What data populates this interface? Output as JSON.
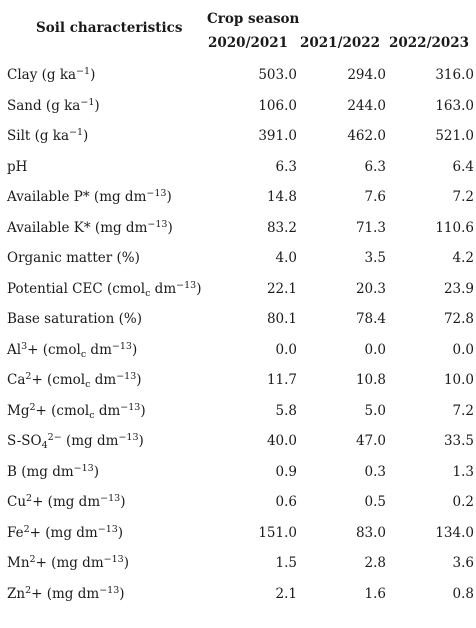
{
  "header": {
    "soil_characteristics": "Soil characteristics",
    "crop_season": "Crop season",
    "years": [
      "2020/2021",
      "2021/2022",
      "2022/2023"
    ]
  },
  "rows": [
    {
      "label": [
        {
          "t": "Clay (g ka"
        },
        {
          "sup": "−1"
        },
        {
          "t": ")"
        }
      ],
      "values": [
        "503.0",
        "294.0",
        "316.0"
      ]
    },
    {
      "label": [
        {
          "t": "Sand (g ka"
        },
        {
          "sup": "−1"
        },
        {
          "t": ")"
        }
      ],
      "values": [
        "106.0",
        "244.0",
        "163.0"
      ]
    },
    {
      "label": [
        {
          "t": "Silt (g ka"
        },
        {
          "sup": "−1"
        },
        {
          "t": ")"
        }
      ],
      "values": [
        "391.0",
        "462.0",
        "521.0"
      ]
    },
    {
      "label": [
        {
          "t": "pH"
        }
      ],
      "values": [
        "6.3",
        "6.3",
        "6.4"
      ]
    },
    {
      "label": [
        {
          "t": "Available P* (mg dm"
        },
        {
          "sup": "−13"
        },
        {
          "t": ")"
        }
      ],
      "values": [
        "14.8",
        "7.6",
        "7.2"
      ]
    },
    {
      "label": [
        {
          "t": "Available K* (mg dm"
        },
        {
          "sup": "−13"
        },
        {
          "t": ")"
        }
      ],
      "values": [
        "83.2",
        "71.3",
        "110.6"
      ]
    },
    {
      "label": [
        {
          "t": "Organic matter (%)"
        }
      ],
      "values": [
        "4.0",
        "3.5",
        "4.2"
      ]
    },
    {
      "label": [
        {
          "t": "Potential CEC (cmol"
        },
        {
          "sub": "c"
        },
        {
          "t": " dm"
        },
        {
          "sup": "−13"
        },
        {
          "t": ")"
        }
      ],
      "values": [
        "22.1",
        "20.3",
        "23.9"
      ]
    },
    {
      "label": [
        {
          "t": "Base saturation (%)"
        }
      ],
      "values": [
        "80.1",
        "78.4",
        "72.8"
      ]
    },
    {
      "label": [
        {
          "t": "Al"
        },
        {
          "sup": "3"
        },
        {
          "t": "+ (cmol"
        },
        {
          "sub": "c"
        },
        {
          "t": " dm"
        },
        {
          "sup": "−13"
        },
        {
          "t": ")"
        }
      ],
      "values": [
        "0.0",
        "0.0",
        "0.0"
      ]
    },
    {
      "label": [
        {
          "t": "Ca"
        },
        {
          "sup": "2"
        },
        {
          "t": "+ (cmol"
        },
        {
          "sub": "c"
        },
        {
          "t": " dm"
        },
        {
          "sup": "−13"
        },
        {
          "t": ")"
        }
      ],
      "values": [
        "11.7",
        "10.8",
        "10.0"
      ]
    },
    {
      "label": [
        {
          "t": "Mg"
        },
        {
          "sup": "2"
        },
        {
          "t": "+ (cmol"
        },
        {
          "sub": "c"
        },
        {
          "t": " dm"
        },
        {
          "sup": "−13"
        },
        {
          "t": ")"
        }
      ],
      "values": [
        "5.8",
        "5.0",
        "7.2"
      ]
    },
    {
      "label": [
        {
          "t": "S-SO"
        },
        {
          "sub": "4"
        },
        {
          "sup": "2−"
        },
        {
          "t": " (mg dm"
        },
        {
          "sup": "−13"
        },
        {
          "t": ")"
        }
      ],
      "values": [
        "40.0",
        "47.0",
        "33.5"
      ]
    },
    {
      "label": [
        {
          "t": "B (mg dm"
        },
        {
          "sup": "−13"
        },
        {
          "t": ")"
        }
      ],
      "values": [
        "0.9",
        "0.3",
        "1.3"
      ]
    },
    {
      "label": [
        {
          "t": "Cu"
        },
        {
          "sup": "2"
        },
        {
          "t": "+ (mg dm"
        },
        {
          "sup": "−13"
        },
        {
          "t": ")"
        }
      ],
      "values": [
        "0.6",
        "0.5",
        "0.2"
      ]
    },
    {
      "label": [
        {
          "t": "Fe"
        },
        {
          "sup": "2"
        },
        {
          "t": "+ (mg dm"
        },
        {
          "sup": "−13"
        },
        {
          "t": ")"
        }
      ],
      "values": [
        "151.0",
        "83.0",
        "134.0"
      ]
    },
    {
      "label": [
        {
          "t": "Mn"
        },
        {
          "sup": "2"
        },
        {
          "t": "+ (mg dm"
        },
        {
          "sup": "−13"
        },
        {
          "t": ")"
        }
      ],
      "values": [
        "1.5",
        "2.8",
        "3.6"
      ]
    },
    {
      "label": [
        {
          "t": "Zn"
        },
        {
          "sup": "2"
        },
        {
          "t": "+ (mg dm"
        },
        {
          "sup": "−13"
        },
        {
          "t": ")"
        }
      ],
      "values": [
        "2.1",
        "1.6",
        "0.8"
      ]
    }
  ]
}
